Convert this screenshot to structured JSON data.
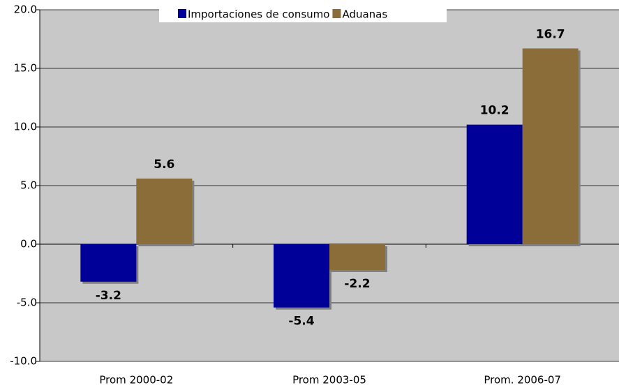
{
  "chart_data": {
    "type": "bar",
    "categories": [
      "Prom 2000-02",
      "Prom 2003-05",
      "Prom. 2006-07"
    ],
    "series": [
      {
        "name": "Importaciones de consumo",
        "color": "#000099",
        "values": [
          -3.2,
          -5.4,
          10.2
        ]
      },
      {
        "name": "Aduanas",
        "color": "#8b6d3a",
        "values": [
          5.6,
          -2.2,
          16.7
        ]
      }
    ],
    "ylim": [
      -10,
      20
    ],
    "yticks": [
      {
        "value": -10,
        "label": "-10.0"
      },
      {
        "value": -5,
        "label": "-5.0"
      },
      {
        "value": 0,
        "label": "0.0"
      },
      {
        "value": 5,
        "label": "5.0"
      },
      {
        "value": 10,
        "label": "10.0"
      },
      {
        "value": 15,
        "label": "15.0"
      },
      {
        "value": 20,
        "label": "20.0"
      }
    ],
    "grid": true,
    "legend": "top"
  }
}
